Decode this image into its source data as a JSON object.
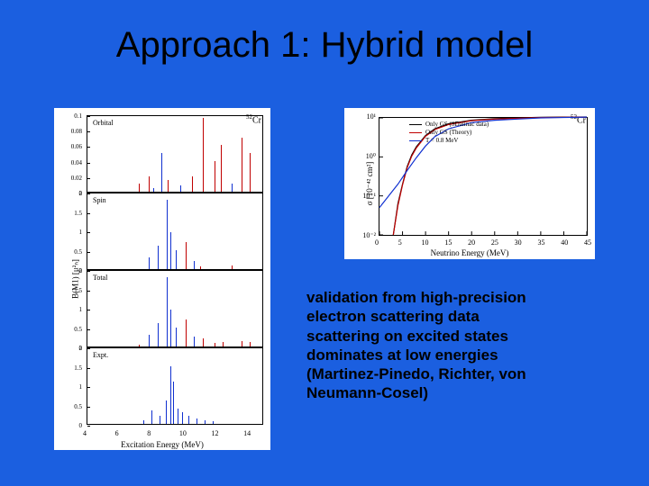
{
  "title": "Approach 1: Hybrid model",
  "caption_lines": [
    "validation from high-precision",
    "electron scattering data",
    "scattering on excited states",
    "dominates at low energies",
    "(Martinez-Pinedo, Richter,  von",
    "Neumann-Cosel)"
  ],
  "colors": {
    "slide_bg": "#1b5fe0",
    "text": "#000000",
    "chart_bg": "#ffffff",
    "axis": "#000000",
    "red": "#c00000",
    "blue": "#1030d0"
  },
  "left_chart": {
    "isotope": "52Cr",
    "ylabel": "B(M1) [μ²ₙ]",
    "xlabel": "Excitation Energy (MeV)",
    "xlim": [
      4,
      15
    ],
    "xticks": [
      4,
      6,
      8,
      10,
      12,
      14
    ],
    "panels": [
      {
        "label": "Orbital",
        "ylim": [
          0,
          0.1
        ],
        "yticks": [
          0,
          0.02,
          0.04,
          0.06,
          0.08,
          0.1
        ],
        "sticks": [
          {
            "x": 7.2,
            "y": 0.01,
            "c": "red"
          },
          {
            "x": 7.8,
            "y": 0.02,
            "c": "red"
          },
          {
            "x": 8.1,
            "y": 0.005,
            "c": "blue"
          },
          {
            "x": 8.6,
            "y": 0.05,
            "c": "blue"
          },
          {
            "x": 9.0,
            "y": 0.015,
            "c": "red"
          },
          {
            "x": 9.8,
            "y": 0.008,
            "c": "blue"
          },
          {
            "x": 10.5,
            "y": 0.02,
            "c": "red"
          },
          {
            "x": 11.2,
            "y": 0.095,
            "c": "red"
          },
          {
            "x": 11.9,
            "y": 0.04,
            "c": "red"
          },
          {
            "x": 12.3,
            "y": 0.06,
            "c": "red"
          },
          {
            "x": 13.0,
            "y": 0.01,
            "c": "blue"
          },
          {
            "x": 13.6,
            "y": 0.07,
            "c": "red"
          },
          {
            "x": 14.1,
            "y": 0.05,
            "c": "red"
          }
        ]
      },
      {
        "label": "Spin",
        "ylim": [
          0,
          2.0
        ],
        "yticks": [
          0,
          0.5,
          1.0,
          1.5,
          2.0
        ],
        "sticks": [
          {
            "x": 7.8,
            "y": 0.3,
            "c": "blue"
          },
          {
            "x": 8.4,
            "y": 0.6,
            "c": "blue"
          },
          {
            "x": 8.95,
            "y": 1.8,
            "c": "blue"
          },
          {
            "x": 9.15,
            "y": 0.95,
            "c": "blue"
          },
          {
            "x": 9.5,
            "y": 0.5,
            "c": "blue"
          },
          {
            "x": 10.1,
            "y": 0.7,
            "c": "red"
          },
          {
            "x": 10.6,
            "y": 0.2,
            "c": "blue"
          },
          {
            "x": 11.0,
            "y": 0.08,
            "c": "red"
          },
          {
            "x": 13.0,
            "y": 0.1,
            "c": "red"
          }
        ]
      },
      {
        "label": "Total",
        "ylim": [
          0,
          2.0
        ],
        "yticks": [
          0,
          0.5,
          1.0,
          1.5,
          2.0
        ],
        "sticks": [
          {
            "x": 7.2,
            "y": 0.05,
            "c": "red"
          },
          {
            "x": 7.8,
            "y": 0.3,
            "c": "blue"
          },
          {
            "x": 8.4,
            "y": 0.6,
            "c": "blue"
          },
          {
            "x": 8.95,
            "y": 1.8,
            "c": "blue"
          },
          {
            "x": 9.15,
            "y": 0.95,
            "c": "blue"
          },
          {
            "x": 9.5,
            "y": 0.5,
            "c": "blue"
          },
          {
            "x": 10.1,
            "y": 0.7,
            "c": "red"
          },
          {
            "x": 10.6,
            "y": 0.25,
            "c": "blue"
          },
          {
            "x": 11.2,
            "y": 0.2,
            "c": "red"
          },
          {
            "x": 11.9,
            "y": 0.1,
            "c": "red"
          },
          {
            "x": 12.4,
            "y": 0.12,
            "c": "red"
          },
          {
            "x": 13.6,
            "y": 0.15,
            "c": "red"
          },
          {
            "x": 14.1,
            "y": 0.12,
            "c": "red"
          }
        ]
      },
      {
        "label": "Expt.",
        "ylim": [
          0,
          2.0
        ],
        "yticks": [
          0,
          0.5,
          1.0,
          1.5,
          2.0
        ],
        "sticks": [
          {
            "x": 7.5,
            "y": 0.1,
            "c": "blue"
          },
          {
            "x": 8.0,
            "y": 0.35,
            "c": "blue"
          },
          {
            "x": 8.5,
            "y": 0.2,
            "c": "blue"
          },
          {
            "x": 8.9,
            "y": 0.6,
            "c": "blue"
          },
          {
            "x": 9.15,
            "y": 1.5,
            "c": "blue"
          },
          {
            "x": 9.35,
            "y": 1.1,
            "c": "blue"
          },
          {
            "x": 9.6,
            "y": 0.4,
            "c": "blue"
          },
          {
            "x": 9.9,
            "y": 0.3,
            "c": "blue"
          },
          {
            "x": 10.3,
            "y": 0.2,
            "c": "blue"
          },
          {
            "x": 10.8,
            "y": 0.15,
            "c": "blue"
          },
          {
            "x": 11.3,
            "y": 0.1,
            "c": "blue"
          },
          {
            "x": 11.8,
            "y": 0.08,
            "c": "blue"
          }
        ]
      }
    ]
  },
  "right_chart": {
    "isotope": "52Cr",
    "xlabel": "Neutrino Energy (MeV)",
    "ylabel": "σ [10⁻⁴² cm²]",
    "xlim": [
      0,
      45
    ],
    "xticks": [
      0,
      5,
      10,
      15,
      20,
      25,
      30,
      35,
      40,
      45
    ],
    "ylim_log": [
      -2,
      1
    ],
    "yticks": [
      "10⁻²",
      "10⁻¹",
      "10⁰",
      "10¹"
    ],
    "legend": [
      {
        "label": "Only GS (SDalinac data)",
        "c": "#000000"
      },
      {
        "label": "Only GS (Theory)",
        "c": "#c00000"
      },
      {
        "label": "T = 0.8 MeV",
        "c": "#1030d0"
      }
    ],
    "curves": [
      {
        "c": "#000000",
        "pts": [
          [
            3,
            -2
          ],
          [
            4,
            -1.2
          ],
          [
            5,
            -0.7
          ],
          [
            6,
            -0.25
          ],
          [
            7,
            0.05
          ],
          [
            8,
            0.26
          ],
          [
            10,
            0.55
          ],
          [
            12,
            0.72
          ],
          [
            15,
            0.85
          ],
          [
            20,
            0.94
          ],
          [
            25,
            0.98
          ],
          [
            30,
            1.0
          ],
          [
            35,
            1.015
          ],
          [
            40,
            1.02
          ],
          [
            45,
            1.025
          ]
        ]
      },
      {
        "c": "#c00000",
        "pts": [
          [
            3,
            -2
          ],
          [
            4,
            -1.25
          ],
          [
            5,
            -0.72
          ],
          [
            6,
            -0.28
          ],
          [
            7,
            0.02
          ],
          [
            8,
            0.23
          ],
          [
            10,
            0.53
          ],
          [
            12,
            0.7
          ],
          [
            15,
            0.83
          ],
          [
            20,
            0.93
          ],
          [
            25,
            0.97
          ],
          [
            30,
            0.99
          ],
          [
            35,
            1.01
          ],
          [
            40,
            1.015
          ],
          [
            45,
            1.02
          ]
        ]
      },
      {
        "c": "#1030d0",
        "pts": [
          [
            0,
            -1.3
          ],
          [
            2,
            -1.0
          ],
          [
            4,
            -0.7
          ],
          [
            6,
            -0.35
          ],
          [
            8,
            -0.02
          ],
          [
            10,
            0.28
          ],
          [
            12,
            0.52
          ],
          [
            15,
            0.72
          ],
          [
            20,
            0.88
          ],
          [
            25,
            0.94
          ],
          [
            30,
            0.97
          ],
          [
            35,
            1.0
          ],
          [
            40,
            1.01
          ],
          [
            45,
            1.02
          ]
        ]
      }
    ]
  }
}
